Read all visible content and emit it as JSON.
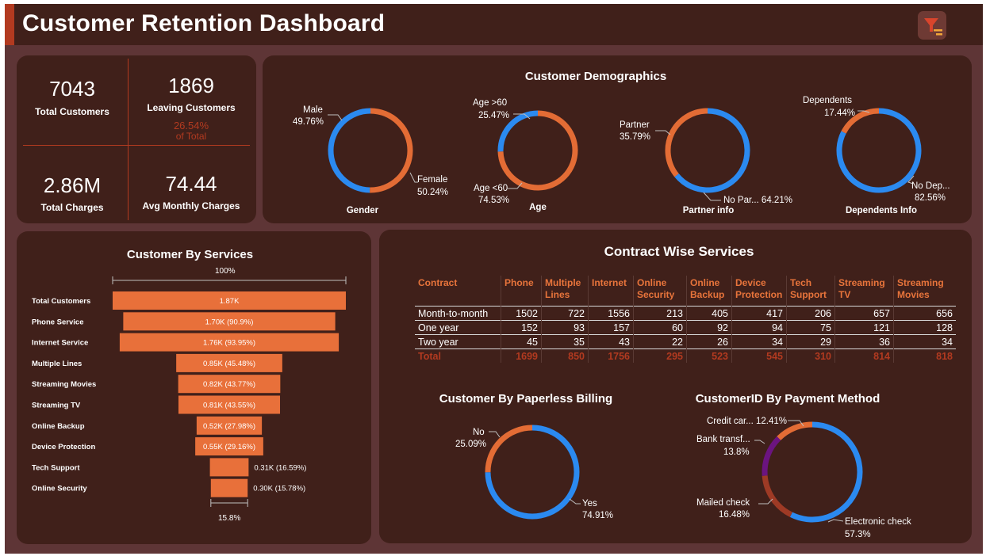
{
  "header": {
    "title": "Customer Retention Dashboard",
    "logo_icon": "funnel-filter-icon"
  },
  "kpis": {
    "total_customers": {
      "value": "7043",
      "label": "Total Customers"
    },
    "leaving_customers": {
      "value": "1869",
      "label": "Leaving Customers",
      "pct": "26.54%",
      "pct_label": "of Total"
    },
    "total_charges": {
      "value": "2.86M",
      "label": "Total Charges"
    },
    "avg_monthly": {
      "value": "74.44",
      "label": "Avg Monthly Charges"
    }
  },
  "demographics": {
    "title": "Customer Demographics",
    "gender": {
      "caption": "Gender",
      "a_name": "Male",
      "a_pct": "49.76%",
      "b_name": "Female",
      "b_pct": "50.24%"
    },
    "age": {
      "caption": "Age",
      "a_name": "Age >60",
      "a_pct": "25.47%",
      "b_name": "Age <60",
      "b_pct": "74.53%"
    },
    "partner": {
      "caption": "Partner info",
      "a_name": "Partner",
      "a_pct": "35.79%",
      "b_text": "No Par... 64.21%"
    },
    "dependents": {
      "caption": "Dependents Info",
      "a_name": "Dependents",
      "a_pct": "17.44%",
      "b_name": "No Dep...",
      "b_pct": "82.56%"
    }
  },
  "services": {
    "title": "Customer By Services",
    "top_label": "100%",
    "bottom_label": "15.8%"
  },
  "contract": {
    "title": "Contract Wise Services",
    "headers": [
      "Contract",
      "Phone",
      "Multiple Lines",
      "Internet",
      "Online Security",
      "Online Backup",
      "Device Protection",
      "Tech Support",
      "Streaming TV",
      "Streaming Movies"
    ],
    "rows": [
      [
        "Month-to-month",
        "1502",
        "722",
        "1556",
        "213",
        "405",
        "417",
        "206",
        "657",
        "656"
      ],
      [
        "One year",
        "152",
        "93",
        "157",
        "60",
        "92",
        "94",
        "75",
        "121",
        "128"
      ],
      [
        "Two year",
        "45",
        "35",
        "43",
        "22",
        "26",
        "34",
        "29",
        "36",
        "34"
      ]
    ],
    "total": [
      "Total",
      "1699",
      "850",
      "1756",
      "295",
      "523",
      "545",
      "310",
      "814",
      "818"
    ]
  },
  "paperless": {
    "title": "Customer By Paperless Billing",
    "no_name": "No",
    "no_pct": "25.09%",
    "yes_name": "Yes",
    "yes_pct": "74.91%"
  },
  "payment": {
    "title": "CustomerID By Payment Method",
    "credit_text": "Credit car... 12.41%",
    "bank_name": "Bank transf...",
    "bank_pct": "13.8%",
    "mailed_name": "Mailed check",
    "mailed_pct": "16.48%",
    "electronic_name": "Electronic check",
    "electronic_pct": "57.3%"
  },
  "colors": {
    "blue": "#2b8af0",
    "orange": "#e36c35",
    "funnel_bar": "#e8703a",
    "dark_red": "#b23a20",
    "purple": "#6b1480",
    "brown_red": "#9e3a25",
    "panel": "#40201a",
    "background": "#5e3536"
  },
  "chart_data": [
    {
      "type": "pie",
      "title": "Gender",
      "categories": [
        "Male",
        "Female"
      ],
      "values": [
        49.76,
        50.24
      ]
    },
    {
      "type": "pie",
      "title": "Age",
      "categories": [
        "Age >60",
        "Age <60"
      ],
      "values": [
        25.47,
        74.53
      ]
    },
    {
      "type": "pie",
      "title": "Partner info",
      "categories": [
        "Partner",
        "No Par..."
      ],
      "values": [
        35.79,
        64.21
      ]
    },
    {
      "type": "pie",
      "title": "Dependents Info",
      "categories": [
        "Dependents",
        "No Dep..."
      ],
      "values": [
        17.44,
        82.56
      ]
    },
    {
      "type": "bar",
      "title": "Customer By Services",
      "categories": [
        "Total Customers",
        "Phone Service",
        "Internet Service",
        "Multiple Lines",
        "Streaming Movies",
        "Streaming TV",
        "Online Backup",
        "Device Protection",
        "Tech Support",
        "Online Security"
      ],
      "values": [
        1.87,
        1.7,
        1.76,
        0.85,
        0.82,
        0.81,
        0.52,
        0.55,
        0.31,
        0.3
      ],
      "percents": [
        100,
        90.9,
        93.95,
        45.48,
        43.77,
        43.55,
        27.98,
        29.16,
        16.59,
        15.78
      ],
      "data_labels": [
        "1.87K",
        "1.70K (90.9%)",
        "1.76K (93.95%)",
        "0.85K (45.48%)",
        "0.82K (43.77%)",
        "0.81K (43.55%)",
        "0.52K (27.98%)",
        "0.55K (29.16%)",
        "0.31K (16.59%)",
        "0.30K (15.78%)"
      ]
    },
    {
      "type": "pie",
      "title": "Customer By Paperless Billing",
      "categories": [
        "No",
        "Yes"
      ],
      "values": [
        25.09,
        74.91
      ]
    },
    {
      "type": "pie",
      "title": "CustomerID By Payment Method",
      "categories": [
        "Credit car...",
        "Bank transf...",
        "Mailed check",
        "Electronic check"
      ],
      "values": [
        12.41,
        13.8,
        16.48,
        57.3
      ]
    }
  ]
}
